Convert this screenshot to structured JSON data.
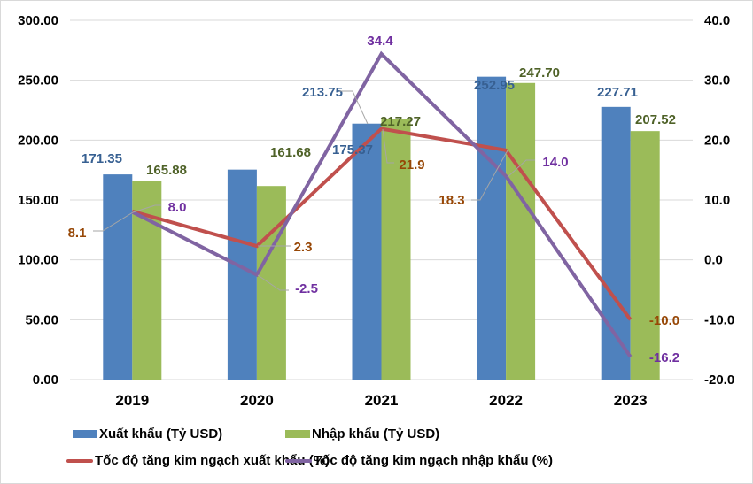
{
  "chart_data": {
    "type": "bar",
    "title": "",
    "xlabel": "",
    "ylabel": "",
    "categories": [
      "2019",
      "2020",
      "2021",
      "2022",
      "2023"
    ],
    "y_left": {
      "ylim": [
        0,
        300
      ],
      "ticks": [
        "0.00",
        "50.00",
        "100.00",
        "150.00",
        "200.00",
        "250.00",
        "300.00"
      ]
    },
    "y_right": {
      "ylim": [
        -20,
        40
      ],
      "ticks": [
        "-20.0",
        "-10.0",
        "0.0",
        "10.0",
        "20.0",
        "30.0",
        "40.0"
      ]
    },
    "grid": true,
    "legend_position": "bottom",
    "series": [
      {
        "name": "Xuất khẩu (Tỷ USD)",
        "kind": "bar",
        "axis": "left",
        "color": "#4f81bd",
        "label_color": "#376092",
        "values": [
          171.35,
          175.37,
          213.75,
          252.95,
          227.71
        ],
        "labels": [
          "171.35",
          "175.37",
          "213.75",
          "252.95",
          "227.71"
        ]
      },
      {
        "name": "Nhập khẩu (Tỷ USD)",
        "kind": "bar",
        "axis": "left",
        "color": "#9bbb59",
        "label_color": "#4f6228",
        "values": [
          165.88,
          161.68,
          217.27,
          247.7,
          207.52
        ],
        "labels": [
          "165.88",
          "161.68",
          "217.27",
          "247.70",
          "207.52"
        ]
      },
      {
        "name": "Tốc độ tăng kim ngạch xuất khẩu (%)",
        "kind": "line",
        "axis": "right",
        "color": "#c0504d",
        "label_color": "#974706",
        "values": [
          8.1,
          2.3,
          21.9,
          18.3,
          -10.0
        ],
        "labels": [
          "8.1",
          "2.3",
          "21.9",
          "18.3",
          "-10.0"
        ]
      },
      {
        "name": "Tốc độ tăng kim ngạch nhập khẩu (%)",
        "kind": "line",
        "axis": "right",
        "color": "#8064a2",
        "label_color": "#7030a0",
        "values": [
          8.0,
          -2.5,
          34.4,
          14.0,
          -16.2
        ],
        "labels": [
          "8.0",
          "-2.5",
          "34.4",
          "14.0",
          "-16.2"
        ]
      }
    ]
  }
}
